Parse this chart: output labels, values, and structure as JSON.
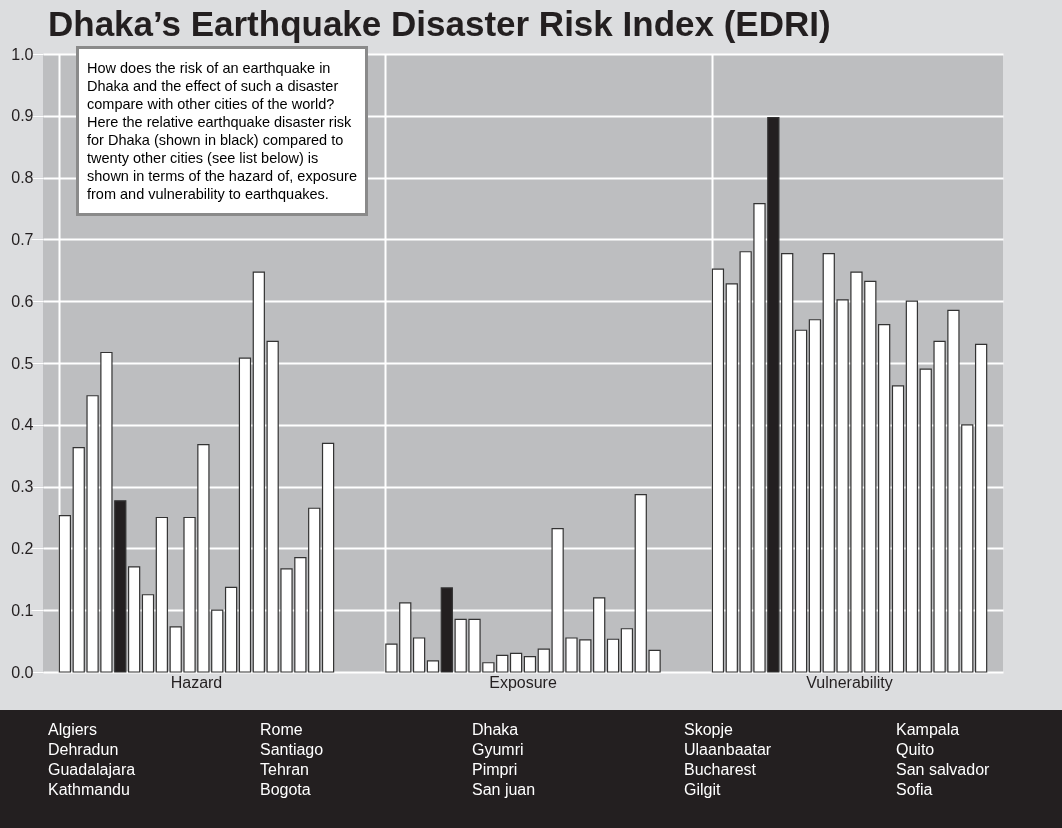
{
  "chart_data": {
    "type": "bar",
    "title": "Dhaka’s Earthquake Disaster Risk Index (EDRI)",
    "categories": [
      "Hazard",
      "Exposure",
      "Vulnerability"
    ],
    "series": [
      {
        "color": "#ffffff",
        "values": [
          0.253,
          0.045,
          0.652
        ]
      },
      {
        "color": "#ffffff",
        "values": [
          0.363,
          0.112,
          0.628
        ]
      },
      {
        "color": "#ffffff",
        "values": [
          0.447,
          0.055,
          0.68
        ]
      },
      {
        "color": "#ffffff",
        "values": [
          0.517,
          0.018,
          0.758
        ]
      },
      {
        "color": "#231f20",
        "values": [
          0.277,
          0.136,
          0.897
        ]
      },
      {
        "color": "#ffffff",
        "values": [
          0.17,
          0.085,
          0.677
        ]
      },
      {
        "color": "#ffffff",
        "values": [
          0.125,
          0.085,
          0.553
        ]
      },
      {
        "color": "#ffffff",
        "values": [
          0.25,
          0.015,
          0.57
        ]
      },
      {
        "color": "#ffffff",
        "values": [
          0.073,
          0.027,
          0.677
        ]
      },
      {
        "color": "#ffffff",
        "values": [
          0.25,
          0.03,
          0.602
        ]
      },
      {
        "color": "#ffffff",
        "values": [
          0.368,
          0.025,
          0.647
        ]
      },
      {
        "color": "#ffffff",
        "values": [
          0.1,
          0.037,
          0.632
        ]
      },
      {
        "color": "#ffffff",
        "values": [
          0.137,
          0.232,
          0.562
        ]
      },
      {
        "color": "#ffffff",
        "values": [
          0.508,
          0.055,
          0.463
        ]
      },
      {
        "color": "#ffffff",
        "values": [
          0.647,
          0.052,
          0.6
        ]
      },
      {
        "color": "#ffffff",
        "values": [
          0.535,
          0.12,
          0.49
        ]
      },
      {
        "color": "#ffffff",
        "values": [
          0.167,
          0.053,
          0.535
        ]
      },
      {
        "color": "#ffffff",
        "values": [
          0.185,
          0.07,
          0.585
        ]
      },
      {
        "color": "#ffffff",
        "values": [
          0.265,
          0.287,
          0.4
        ]
      },
      {
        "color": "#ffffff",
        "values": [
          0.37,
          0.035,
          0.53
        ]
      }
    ],
    "ylim": [
      0,
      1
    ],
    "yticks": [
      {
        "value": 0,
        "label": "0.0"
      },
      0.1,
      0.2,
      0.3,
      0.4,
      0.5,
      0.6,
      0.7,
      0.8,
      0.9,
      {
        "value": 1,
        "label": "1.0"
      }
    ],
    "grid": true,
    "annotations": [
      "How does the risk of an earthquake in Dhaka and the effect of such a disaster compare with other cities of the world? Here the relative earthquake disaster risk for Dhaka (shown in black) compared to twenty other cities (see list below) is shown in terms of the hazard of, exposure from and vulnerability to earthquakes.",
      "Algiers",
      "Dehradun",
      "Guadalajara",
      "Kathmandu",
      "Rome",
      "Santiago",
      "Tehran",
      "Bogota",
      "Dhaka",
      "Gyumri",
      "Pimpri",
      "San juan",
      "Skopje",
      "Ulaanbaatar",
      "Bucharest",
      "Gilgit",
      "Kampala",
      "Quito",
      "San salvador",
      "Sofia"
    ]
  }
}
